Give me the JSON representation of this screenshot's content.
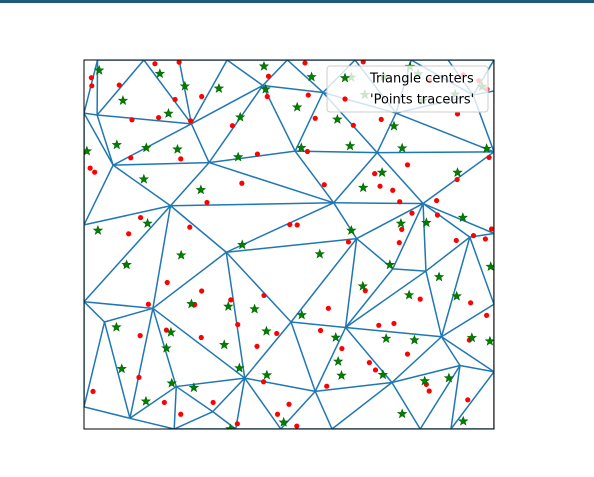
{
  "figure": {
    "top_bar_color": "#1f5a78"
  },
  "chart_data": {
    "type": "scatter",
    "title": "",
    "xlabel": "",
    "ylabel": "",
    "xlim": [
      0,
      1
    ],
    "ylim": [
      0,
      1
    ],
    "axis_ticks": "hidden",
    "legend_position": "top-right",
    "mesh_color": "#1f77b4",
    "legend": [
      {
        "label": "Triangle centers",
        "marker": "star",
        "color": "#008000"
      },
      {
        "label": "'Points traceurs'",
        "marker": "circle",
        "color": "#ff0000"
      }
    ],
    "mesh": {
      "vertices": [
        [
          0.0,
          0.856
        ],
        [
          0.033,
          1.0
        ],
        [
          0.146,
          1.0
        ],
        [
          0.232,
          1.0
        ],
        [
          0.349,
          1.0
        ],
        [
          0.496,
          1.0
        ],
        [
          0.661,
          1.0
        ],
        [
          0.798,
          1.0
        ],
        [
          0.888,
          1.0
        ],
        [
          1.0,
          1.0
        ],
        [
          1.0,
          0.916
        ],
        [
          0.949,
          0.905
        ],
        [
          0.761,
          0.856
        ],
        [
          0.583,
          0.912
        ],
        [
          0.436,
          0.931
        ],
        [
          0.262,
          0.827
        ],
        [
          0.032,
          0.851
        ],
        [
          0.071,
          0.715
        ],
        [
          0.305,
          0.722
        ],
        [
          0.515,
          0.753
        ],
        [
          0.715,
          0.749
        ],
        [
          1.0,
          0.751
        ],
        [
          0.211,
          0.605
        ],
        [
          0.609,
          0.613
        ],
        [
          0.827,
          0.611
        ],
        [
          0.0,
          0.553
        ],
        [
          0.941,
          0.52
        ],
        [
          1.0,
          0.53
        ],
        [
          0.347,
          0.479
        ],
        [
          0.665,
          0.516
        ],
        [
          0.753,
          0.434
        ],
        [
          0.834,
          0.428
        ],
        [
          0.168,
          0.327
        ],
        [
          0.0,
          0.345
        ],
        [
          0.505,
          0.29
        ],
        [
          0.638,
          0.275
        ],
        [
          0.872,
          0.25
        ],
        [
          1.0,
          0.338
        ],
        [
          0.05,
          0.29
        ],
        [
          0.917,
          0.172
        ],
        [
          1.0,
          0.155
        ],
        [
          0.392,
          0.138
        ],
        [
          0.112,
          0.029
        ],
        [
          0.225,
          0.115
        ],
        [
          0.314,
          0.047
        ],
        [
          0.564,
          0.102
        ],
        [
          0.751,
          0.126
        ],
        [
          0.0,
          0.06
        ],
        [
          0.22,
          0.0
        ],
        [
          0.37,
          0.0
        ],
        [
          0.48,
          0.0
        ],
        [
          0.605,
          0.0
        ],
        [
          0.82,
          0.0
        ],
        [
          0.895,
          0.0
        ],
        [
          1.0,
          0.0
        ]
      ],
      "triangles": [
        [
          0,
          1,
          16
        ],
        [
          1,
          2,
          16
        ],
        [
          2,
          3,
          15
        ],
        [
          3,
          4,
          15
        ],
        [
          4,
          5,
          14
        ],
        [
          5,
          6,
          13
        ],
        [
          6,
          7,
          12
        ],
        [
          7,
          8,
          11
        ],
        [
          8,
          9,
          11
        ],
        [
          9,
          10,
          11
        ],
        [
          2,
          15,
          16
        ],
        [
          4,
          14,
          15
        ],
        [
          5,
          13,
          14
        ],
        [
          6,
          12,
          13
        ],
        [
          7,
          11,
          12
        ],
        [
          10,
          11,
          21
        ],
        [
          11,
          12,
          21
        ],
        [
          0,
          16,
          17
        ],
        [
          16,
          15,
          17
        ],
        [
          15,
          14,
          18
        ],
        [
          14,
          13,
          19
        ],
        [
          13,
          12,
          20
        ],
        [
          12,
          21,
          20
        ],
        [
          15,
          18,
          17
        ],
        [
          14,
          19,
          18
        ],
        [
          13,
          20,
          19
        ],
        [
          0,
          17,
          25
        ],
        [
          17,
          18,
          22
        ],
        [
          18,
          19,
          23
        ],
        [
          19,
          20,
          23
        ],
        [
          20,
          21,
          24
        ],
        [
          21,
          27,
          24
        ],
        [
          17,
          22,
          25
        ],
        [
          18,
          23,
          22
        ],
        [
          20,
          24,
          23
        ],
        [
          24,
          27,
          26
        ],
        [
          22,
          23,
          28
        ],
        [
          23,
          29,
          28
        ],
        [
          23,
          24,
          29
        ],
        [
          24,
          30,
          29
        ],
        [
          24,
          26,
          31
        ],
        [
          24,
          31,
          30
        ],
        [
          25,
          22,
          33
        ],
        [
          22,
          28,
          32
        ],
        [
          22,
          32,
          33
        ],
        [
          28,
          29,
          34
        ],
        [
          29,
          30,
          35
        ],
        [
          29,
          35,
          34
        ],
        [
          30,
          31,
          35
        ],
        [
          31,
          26,
          36
        ],
        [
          26,
          27,
          37
        ],
        [
          26,
          37,
          36
        ],
        [
          33,
          32,
          38
        ],
        [
          32,
          28,
          41
        ],
        [
          28,
          34,
          41
        ],
        [
          34,
          35,
          45
        ],
        [
          35,
          36,
          46
        ],
        [
          36,
          37,
          40
        ],
        [
          36,
          40,
          39
        ],
        [
          33,
          38,
          47
        ],
        [
          38,
          32,
          42
        ],
        [
          32,
          43,
          42
        ],
        [
          32,
          41,
          43
        ],
        [
          41,
          44,
          43
        ],
        [
          41,
          34,
          45
        ],
        [
          35,
          46,
          45
        ],
        [
          36,
          39,
          46
        ],
        [
          47,
          38,
          42
        ],
        [
          42,
          43,
          48
        ],
        [
          43,
          44,
          48
        ],
        [
          44,
          41,
          49
        ],
        [
          41,
          45,
          50
        ],
        [
          45,
          46,
          51
        ],
        [
          46,
          39,
          52
        ],
        [
          39,
          40,
          53
        ],
        [
          40,
          54,
          53
        ],
        [
          39,
          53,
          52
        ],
        [
          46,
          52,
          51
        ],
        [
          45,
          51,
          50
        ],
        [
          41,
          50,
          49
        ],
        [
          44,
          49,
          48
        ]
      ]
    },
    "series": [
      {
        "name": "Triangle centers",
        "marker": "star",
        "color": "#008000",
        "points": [
          [
            0.037,
            0.972
          ],
          [
            0.185,
            0.963
          ],
          [
            0.439,
            0.983
          ],
          [
            0.555,
            0.954
          ],
          [
            0.652,
            0.953
          ],
          [
            0.731,
            0.955
          ],
          [
            0.795,
            0.982
          ],
          [
            0.815,
            0.962
          ],
          [
            0.971,
            0.928
          ],
          [
            0.246,
            0.929
          ],
          [
            0.329,
            0.923
          ],
          [
            0.443,
            0.921
          ],
          [
            0.685,
            0.906
          ],
          [
            0.826,
            0.89
          ],
          [
            0.905,
            0.907
          ],
          [
            0.095,
            0.89
          ],
          [
            0.206,
            0.855
          ],
          [
            0.381,
            0.845
          ],
          [
            0.52,
            0.872
          ],
          [
            0.618,
            0.839
          ],
          [
            0.756,
            0.821
          ],
          [
            0.08,
            0.77
          ],
          [
            0.152,
            0.762
          ],
          [
            0.228,
            0.758
          ],
          [
            0.376,
            0.737
          ],
          [
            0.53,
            0.762
          ],
          [
            0.649,
            0.767
          ],
          [
            0.776,
            0.761
          ],
          [
            0.982,
            0.76
          ],
          [
            0.911,
            0.695
          ],
          [
            0.727,
            0.695
          ],
          [
            0.681,
            0.654
          ],
          [
            0.146,
            0.677
          ],
          [
            0.285,
            0.648
          ],
          [
            0.007,
            0.753
          ],
          [
            0.924,
            0.573
          ],
          [
            0.034,
            0.538
          ],
          [
            0.155,
            0.557
          ],
          [
            0.386,
            0.499
          ],
          [
            0.652,
            0.538
          ],
          [
            0.773,
            0.557
          ],
          [
            0.835,
            0.559
          ],
          [
            0.104,
            0.445
          ],
          [
            0.237,
            0.471
          ],
          [
            0.575,
            0.474
          ],
          [
            0.746,
            0.445
          ],
          [
            0.866,
            0.412
          ],
          [
            0.909,
            0.36
          ],
          [
            0.992,
            0.44
          ],
          [
            0.262,
            0.339
          ],
          [
            0.352,
            0.332
          ],
          [
            0.416,
            0.325
          ],
          [
            0.531,
            0.309
          ],
          [
            0.68,
            0.387
          ],
          [
            0.793,
            0.363
          ],
          [
            0.079,
            0.276
          ],
          [
            0.212,
            0.262
          ],
          [
            0.445,
            0.265
          ],
          [
            0.614,
            0.248
          ],
          [
            0.737,
            0.245
          ],
          [
            0.806,
            0.241
          ],
          [
            0.946,
            0.247
          ],
          [
            0.201,
            0.219
          ],
          [
            0.342,
            0.228
          ],
          [
            0.092,
            0.163
          ],
          [
            0.214,
            0.124
          ],
          [
            0.379,
            0.165
          ],
          [
            0.446,
            0.146
          ],
          [
            0.628,
            0.145
          ],
          [
            0.729,
            0.147
          ],
          [
            0.831,
            0.13
          ],
          [
            0.89,
            0.138
          ],
          [
            0.151,
            0.075
          ],
          [
            0.268,
            0.112
          ],
          [
            0.487,
            0.018
          ],
          [
            0.357,
            0.0
          ],
          [
            0.776,
            0.041
          ],
          [
            0.925,
            0.021
          ],
          [
            0.62,
            0.183
          ],
          [
            0.99,
            0.238
          ]
        ]
      },
      {
        "name": "'Points traceurs'",
        "marker": "circle",
        "color": "#ff0000",
        "points": [
          [
            0.018,
            0.952
          ],
          [
            0.086,
            0.932
          ],
          [
            0.173,
            0.99
          ],
          [
            0.232,
            0.994
          ],
          [
            0.45,
            0.956
          ],
          [
            0.539,
            0.992
          ],
          [
            0.681,
            0.995
          ],
          [
            0.925,
            0.96
          ],
          [
            0.222,
            0.893
          ],
          [
            0.287,
            0.901
          ],
          [
            0.447,
            0.901
          ],
          [
            0.547,
            0.905
          ],
          [
            0.843,
            0.945
          ],
          [
            0.963,
            0.944
          ],
          [
            0.983,
            0.921
          ],
          [
            0.117,
            0.838
          ],
          [
            0.182,
            0.844
          ],
          [
            0.26,
            0.835
          ],
          [
            0.362,
            0.822
          ],
          [
            0.564,
            0.842
          ],
          [
            0.657,
            0.823
          ],
          [
            0.725,
            0.839
          ],
          [
            0.911,
            0.854
          ],
          [
            0.019,
            0.93
          ],
          [
            0.026,
            0.696
          ],
          [
            0.114,
            0.735
          ],
          [
            0.236,
            0.732
          ],
          [
            0.423,
            0.745
          ],
          [
            0.545,
            0.752
          ],
          [
            0.722,
            0.658
          ],
          [
            0.753,
            0.647
          ],
          [
            0.91,
            0.676
          ],
          [
            0.988,
            0.736
          ],
          [
            0.015,
            0.707
          ],
          [
            0.138,
            0.573
          ],
          [
            0.3,
            0.614
          ],
          [
            0.385,
            0.666
          ],
          [
            0.502,
            0.554
          ],
          [
            0.586,
            0.662
          ],
          [
            0.709,
            0.692
          ],
          [
            0.789,
            0.716
          ],
          [
            0.86,
            0.619
          ],
          [
            0.95,
            0.524
          ],
          [
            0.109,
            0.529
          ],
          [
            0.258,
            0.547
          ],
          [
            0.52,
            0.553
          ],
          [
            0.645,
            0.507
          ],
          [
            0.77,
            0.616
          ],
          [
            0.775,
            0.541
          ],
          [
            0.862,
            0.58
          ],
          [
            0.994,
            0.542
          ],
          [
            0.102,
            0.445
          ],
          [
            0.287,
            0.374
          ],
          [
            0.358,
            0.35
          ],
          [
            0.439,
            0.362
          ],
          [
            0.596,
            0.327
          ],
          [
            0.686,
            0.375
          ],
          [
            0.769,
            0.505
          ],
          [
            0.8,
            0.585
          ],
          [
            0.943,
            0.342
          ],
          [
            0.908,
            0.511
          ],
          [
            0.82,
            0.352
          ],
          [
            0.979,
            0.515
          ],
          [
            0.137,
            0.253
          ],
          [
            0.201,
            0.268
          ],
          [
            0.286,
            0.248
          ],
          [
            0.375,
            0.283
          ],
          [
            0.47,
            0.259
          ],
          [
            0.577,
            0.267
          ],
          [
            0.719,
            0.281
          ],
          [
            0.789,
            0.203
          ],
          [
            0.94,
            0.241
          ],
          [
            0.134,
            0.14
          ],
          [
            0.196,
            0.072
          ],
          [
            0.315,
            0.072
          ],
          [
            0.438,
            0.128
          ],
          [
            0.5,
            0.067
          ],
          [
            0.629,
            0.218
          ],
          [
            0.696,
            0.18
          ],
          [
            0.756,
            0.286
          ],
          [
            0.835,
            0.121
          ],
          [
            0.022,
            0.102
          ],
          [
            0.236,
            0.04
          ],
          [
            0.472,
            0.04
          ],
          [
            0.519,
            0.008
          ],
          [
            0.374,
            0.014
          ],
          [
            0.592,
            0.116
          ],
          [
            0.711,
            0.16
          ],
          [
            0.842,
            0.103
          ],
          [
            0.982,
            0.308
          ],
          [
            0.936,
            0.079
          ],
          [
            0.157,
            0.338
          ],
          [
            0.203,
            0.397
          ],
          [
            0.27,
            0.337
          ],
          [
            0.422,
            0.224
          ]
        ]
      }
    ]
  }
}
